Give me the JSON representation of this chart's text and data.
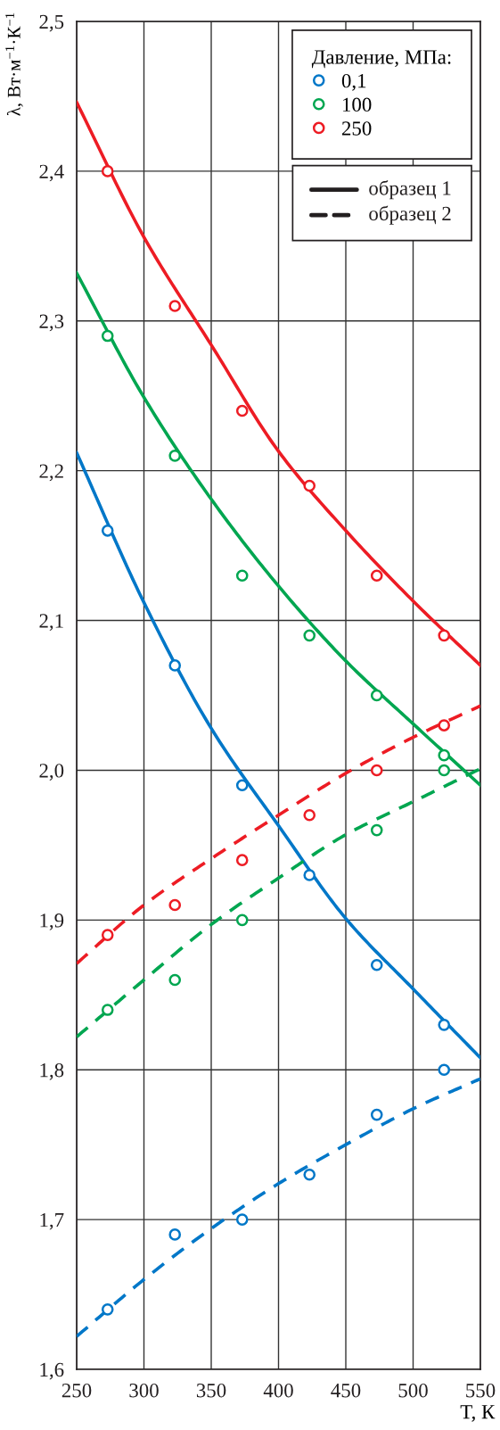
{
  "chart_data": {
    "type": "scatter",
    "xlabel": "T, К",
    "ylabel": "λ, Вт·м$^{−1}$·К$^{−1}$",
    "legend_title": "Давление, МПа:",
    "annotations": [
      "образец 1",
      "образец 2"
    ],
    "xlim": [
      250,
      550
    ],
    "ylim": [
      1.6,
      2.5
    ],
    "xticks": [
      250,
      300,
      350,
      400,
      450,
      500,
      550
    ],
    "yticks": [
      {
        "value": 1.6,
        "label": "1,6"
      },
      {
        "value": 1.7,
        "label": "1,7"
      },
      {
        "value": 1.8,
        "label": "1,8"
      },
      {
        "value": 1.9,
        "label": "1,9"
      },
      {
        "value": 2.0,
        "label": "2,0"
      },
      {
        "value": 2.1,
        "label": "2,1"
      },
      {
        "value": 2.2,
        "label": "2,2"
      },
      {
        "value": 2.3,
        "label": "2,3"
      },
      {
        "value": 2.4,
        "label": "2,4"
      },
      {
        "value": 2.5,
        "label": "2,5"
      }
    ],
    "grid": true,
    "legend": "top right",
    "marker": "circle",
    "series": [
      {
        "type": "line",
        "line_style": "solid",
        "marker": "none",
        "color": "#0077c8",
        "x": [
          250,
          300,
          350,
          400,
          450,
          500,
          550
        ],
        "values": [
          2.212,
          2.112,
          2.028,
          1.963,
          1.901,
          1.854,
          1.808
        ]
      },
      {
        "type": "line",
        "line_style": "solid",
        "marker": "none",
        "color": "#00a650",
        "x": [
          250,
          300,
          350,
          400,
          450,
          500,
          550
        ],
        "values": [
          2.332,
          2.249,
          2.181,
          2.123,
          2.073,
          2.031,
          1.99
        ]
      },
      {
        "type": "line",
        "line_style": "solid",
        "marker": "none",
        "color": "#ed1c24",
        "x": [
          250,
          300,
          350,
          400,
          450,
          500,
          550
        ],
        "values": [
          2.446,
          2.356,
          2.284,
          2.213,
          2.16,
          2.113,
          2.07
        ]
      },
      {
        "type": "line",
        "line_style": "dashed",
        "marker": "none",
        "color": "#0077c8",
        "x": [
          250,
          300,
          350,
          400,
          450,
          500,
          550
        ],
        "values": [
          1.622,
          1.66,
          1.694,
          1.724,
          1.75,
          1.774,
          1.794
        ]
      },
      {
        "type": "line",
        "line_style": "dashed",
        "marker": "none",
        "color": "#00a650",
        "x": [
          250,
          300,
          350,
          400,
          450,
          500,
          550
        ],
        "values": [
          1.822,
          1.86,
          1.897,
          1.928,
          1.957,
          1.979,
          2.001
        ]
      },
      {
        "type": "line",
        "line_style": "dashed",
        "marker": "none",
        "color": "#ed1c24",
        "x": [
          250,
          300,
          350,
          400,
          450,
          500,
          550
        ],
        "values": [
          1.871,
          1.91,
          1.941,
          1.97,
          1.998,
          2.022,
          2.043
        ]
      },
      {
        "name": "0,1",
        "color": "#0077c8",
        "x": [
          273,
          323,
          373,
          423,
          473,
          523,
          273,
          323,
          373,
          423,
          473,
          523
        ],
        "values": [
          2.16,
          2.07,
          1.99,
          1.93,
          1.87,
          1.83,
          1.64,
          1.69,
          1.7,
          1.73,
          1.77,
          1.8
        ]
      },
      {
        "name": "100",
        "color": "#00a650",
        "x": [
          273,
          323,
          373,
          423,
          473,
          523,
          273,
          323,
          373,
          473,
          523
        ],
        "values": [
          2.29,
          2.21,
          2.13,
          2.09,
          2.05,
          2.01,
          1.84,
          1.86,
          1.9,
          1.96,
          2.0
        ]
      },
      {
        "name": "250",
        "color": "#ed1c24",
        "x": [
          273,
          323,
          373,
          423,
          473,
          523,
          273,
          323,
          373,
          423,
          473,
          523
        ],
        "values": [
          2.4,
          2.31,
          2.24,
          2.19,
          2.13,
          2.09,
          1.89,
          1.91,
          1.94,
          1.97,
          2.0,
          2.03
        ]
      }
    ]
  }
}
